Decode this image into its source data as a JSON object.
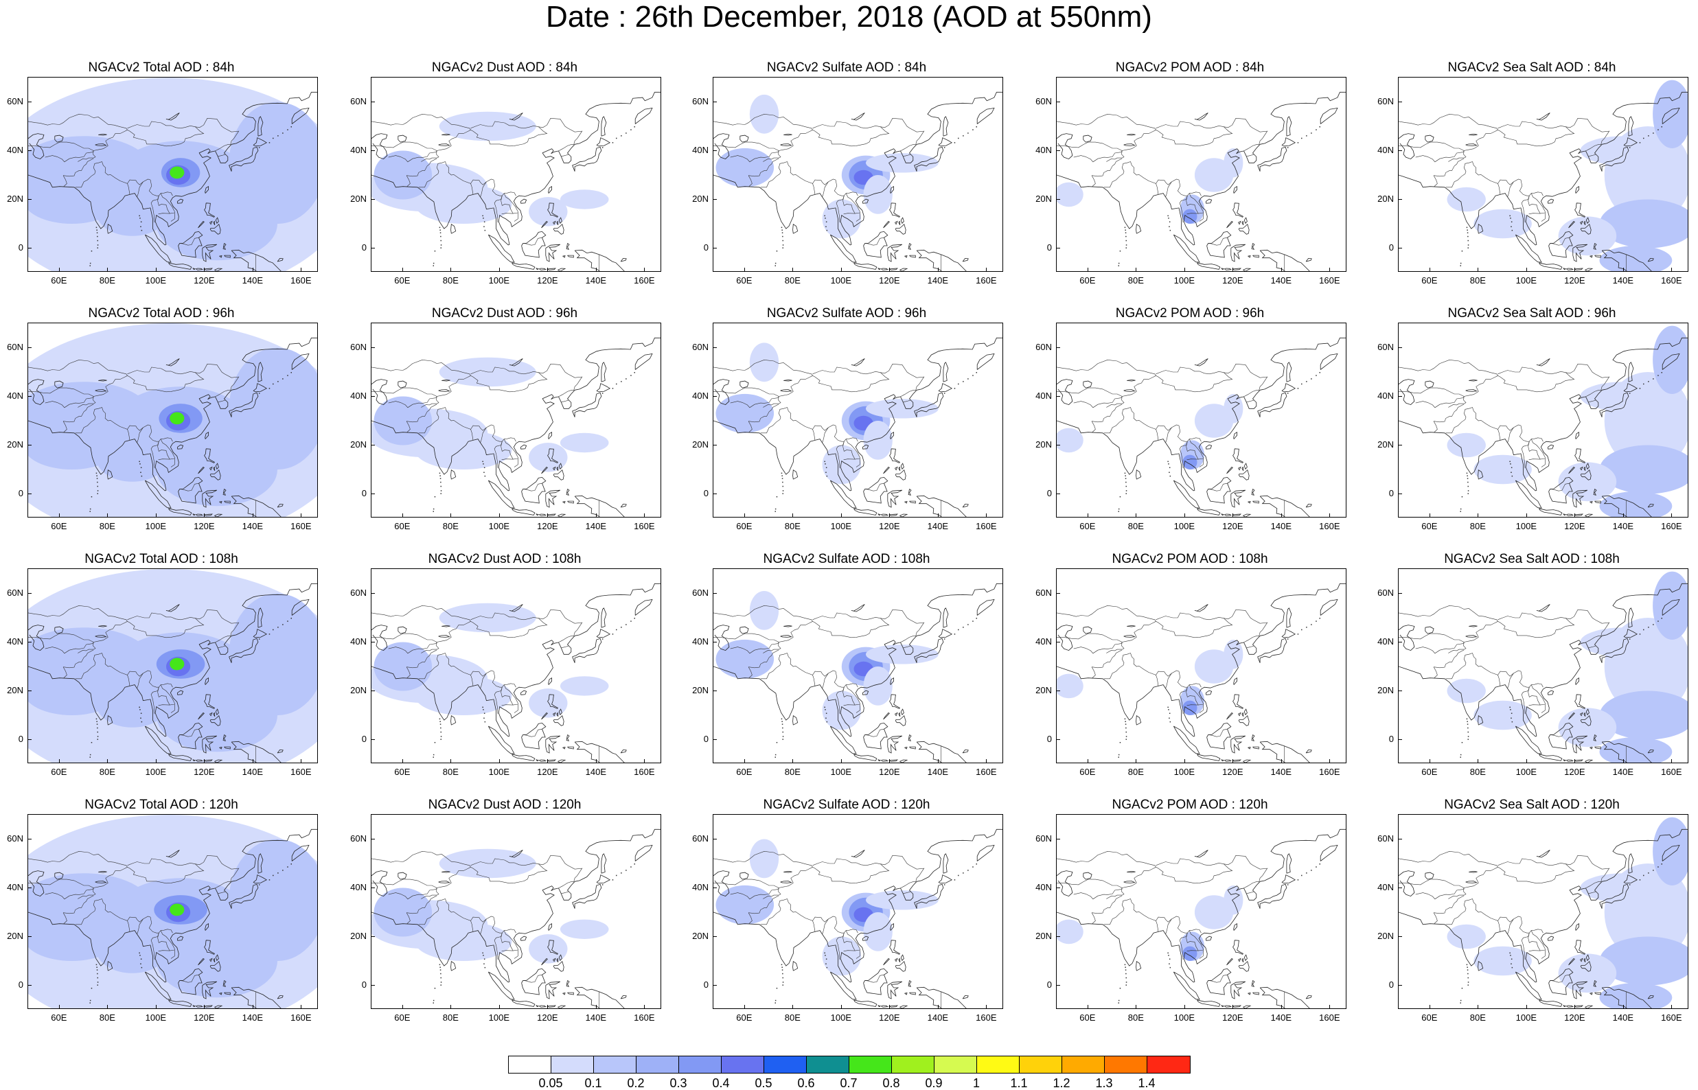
{
  "title": "Date : 26th December, 2018 (AOD at 550nm)",
  "map": {
    "lon_range": [
      47,
      167
    ],
    "lat_range": [
      -10,
      70
    ],
    "x_ticks": [
      "60E",
      "80E",
      "100E",
      "120E",
      "140E",
      "160E"
    ],
    "x_tick_values": [
      60,
      80,
      100,
      120,
      140,
      160
    ],
    "y_ticks": [
      "60N",
      "40N",
      "20N",
      "0"
    ],
    "y_tick_values": [
      60,
      40,
      20,
      0
    ]
  },
  "panels": [
    {
      "title": "NGACv2 Total AOD : 84h",
      "type": "total"
    },
    {
      "title": "NGACv2 Dust AOD : 84h",
      "type": "dust"
    },
    {
      "title": "NGACv2 Sulfate AOD : 84h",
      "type": "sulfate"
    },
    {
      "title": "NGACv2 POM AOD : 84h",
      "type": "pom"
    },
    {
      "title": "NGACv2 Sea Salt AOD : 84h",
      "type": "seasalt"
    },
    {
      "title": "NGACv2 Total AOD : 96h",
      "type": "total"
    },
    {
      "title": "NGACv2 Dust AOD : 96h",
      "type": "dust"
    },
    {
      "title": "NGACv2 Sulfate AOD : 96h",
      "type": "sulfate"
    },
    {
      "title": "NGACv2 POM AOD : 96h",
      "type": "pom"
    },
    {
      "title": "NGACv2 Sea Salt AOD : 96h",
      "type": "seasalt"
    },
    {
      "title": "NGACv2 Total AOD : 108h",
      "type": "total"
    },
    {
      "title": "NGACv2 Dust AOD : 108h",
      "type": "dust"
    },
    {
      "title": "NGACv2 Sulfate AOD : 108h",
      "type": "sulfate"
    },
    {
      "title": "NGACv2 POM AOD : 108h",
      "type": "pom"
    },
    {
      "title": "NGACv2 Sea Salt AOD : 108h",
      "type": "seasalt"
    },
    {
      "title": "NGACv2 Total AOD : 120h",
      "type": "total"
    },
    {
      "title": "NGACv2 Dust AOD : 120h",
      "type": "dust"
    },
    {
      "title": "NGACv2 Sulfate AOD : 120h",
      "type": "sulfate"
    },
    {
      "title": "NGACv2 POM AOD : 120h",
      "type": "pom"
    },
    {
      "title": "NGACv2 Sea Salt  AOD : 120h",
      "type": "seasalt"
    }
  ],
  "colorbar": {
    "labels": [
      "0.05",
      "0.1",
      "0.2",
      "0.3",
      "0.4",
      "0.5",
      "0.6",
      "0.7",
      "0.8",
      "0.9",
      "1",
      "1.1",
      "1.2",
      "1.3",
      "1.4"
    ],
    "colors": [
      "#ffffff",
      "#d4dcfc",
      "#b8c6fa",
      "#9eb1f7",
      "#8299f4",
      "#6873f0",
      "#1f60f2",
      "#0f8f91",
      "#45e61a",
      "#a0f01e",
      "#d6fa50",
      "#fffa14",
      "#ffd20a",
      "#ffaa00",
      "#ff7800",
      "#ff2814"
    ]
  }
}
